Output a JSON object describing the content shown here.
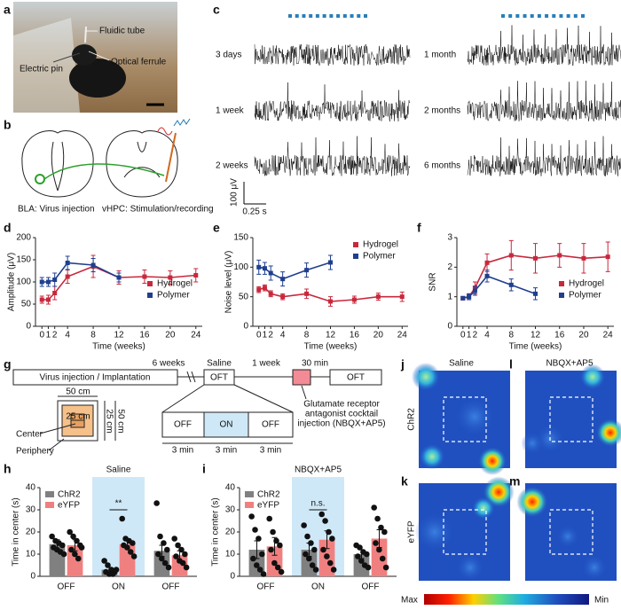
{
  "panel_labels": [
    "a",
    "b",
    "c",
    "d",
    "e",
    "f",
    "g",
    "h",
    "i",
    "j",
    "k",
    "l",
    "m"
  ],
  "photo": {
    "labels": [
      "Fluidic tube",
      "Optical ferrule",
      "Electric pin"
    ]
  },
  "schematic": {
    "labels": [
      "BLA: Virus injection",
      "vHPC: Stimulation/recording"
    ]
  },
  "traces": {
    "labels": [
      "3 days",
      "1 week",
      "2 weeks",
      "1 month",
      "2 months",
      "6 months"
    ],
    "scale_y": "100 μV",
    "scale_x": "0.25 s"
  },
  "protocol": {
    "start": "Virus injection / Implantation",
    "intervals": [
      "6 weeks",
      "Saline",
      "1 week",
      "30 min"
    ],
    "tests": [
      "OFT",
      "OFT"
    ],
    "epochs": [
      "OFF",
      "ON",
      "OFF"
    ],
    "durations": [
      "3 min",
      "3 min",
      "3 min"
    ],
    "injection": [
      "Glutamate receptor",
      "antagonist cocktail",
      "injection (NBQX+AP5)"
    ],
    "arena": {
      "outer": "50 cm",
      "inner": "25 cm",
      "outer_side": "50 cm",
      "inner_side": "25 cm",
      "center": "Center",
      "periphery": "Periphery"
    }
  },
  "heatmaps": {
    "titles": [
      "Saline",
      "NBQX+AP5"
    ],
    "rows": [
      "ChR2",
      "eYFP"
    ],
    "colorbar": [
      "Max",
      "Min"
    ]
  },
  "chart_data": [
    {
      "type": "line",
      "ylabel": "Amplitude (μV)",
      "xlabel": "Time (weeks)",
      "xlim": [
        -1,
        25
      ],
      "xticks": [
        0,
        1,
        2,
        4,
        8,
        12,
        16,
        20,
        24
      ],
      "ylim": [
        0,
        200
      ],
      "yticks": [
        0,
        50,
        100,
        150,
        200
      ],
      "legend": "center right",
      "series": [
        {
          "name": "Hydrogel",
          "color": "#c8283c",
          "x": [
            0,
            1,
            2,
            4,
            8,
            12,
            16,
            20,
            24
          ],
          "values": [
            60,
            60,
            75,
            112,
            135,
            110,
            112,
            110,
            115
          ],
          "errors": [
            8,
            10,
            15,
            15,
            25,
            15,
            15,
            15,
            15
          ]
        },
        {
          "name": "Polymer",
          "color": "#1f3f8f",
          "x": [
            0,
            1,
            2,
            4,
            8,
            12
          ],
          "values": [
            100,
            100,
            105,
            143,
            138,
            110
          ],
          "errors": [
            10,
            10,
            15,
            15,
            15,
            10
          ]
        }
      ]
    },
    {
      "type": "line",
      "ylabel": "Noise level (μV)",
      "xlabel": "Time (weeks)",
      "xlim": [
        -1,
        25
      ],
      "xticks": [
        0,
        1,
        2,
        4,
        8,
        12,
        16,
        20,
        24
      ],
      "ylim": [
        0,
        150
      ],
      "yticks": [
        0,
        50,
        100,
        150
      ],
      "legend": "upper right",
      "series": [
        {
          "name": "Hydrogel",
          "color": "#c8283c",
          "x": [
            0,
            1,
            2,
            4,
            8,
            12,
            16,
            20,
            24
          ],
          "values": [
            62,
            65,
            55,
            50,
            55,
            42,
            45,
            50,
            50
          ],
          "errors": [
            5,
            5,
            5,
            5,
            8,
            8,
            6,
            6,
            8
          ]
        },
        {
          "name": "Polymer",
          "color": "#1f3f8f",
          "x": [
            0,
            1,
            2,
            4,
            8,
            12
          ],
          "values": [
            100,
            98,
            90,
            80,
            95,
            108
          ],
          "errors": [
            12,
            10,
            12,
            12,
            12,
            12
          ]
        }
      ]
    },
    {
      "type": "line",
      "ylabel": "SNR",
      "xlabel": "Time (weeks)",
      "xlim": [
        -1,
        25
      ],
      "xticks": [
        0,
        1,
        2,
        4,
        8,
        12,
        16,
        20,
        24
      ],
      "ylim": [
        0,
        3
      ],
      "yticks": [
        0,
        1,
        2,
        3
      ],
      "legend": "center right",
      "series": [
        {
          "name": "Hydrogel",
          "color": "#c8283c",
          "x": [
            0,
            1,
            2,
            4,
            8,
            12,
            16,
            20,
            24
          ],
          "values": [
            0.95,
            1.0,
            1.3,
            2.15,
            2.4,
            2.3,
            2.4,
            2.3,
            2.35
          ],
          "errors": [
            0.05,
            0.1,
            0.2,
            0.3,
            0.5,
            0.5,
            0.4,
            0.5,
            0.5
          ]
        },
        {
          "name": "Polymer",
          "color": "#1f3f8f",
          "x": [
            0,
            1,
            2,
            4,
            8,
            12
          ],
          "values": [
            0.95,
            1.0,
            1.2,
            1.7,
            1.4,
            1.1
          ],
          "errors": [
            0.05,
            0.1,
            0.15,
            0.2,
            0.2,
            0.2
          ]
        }
      ]
    },
    {
      "type": "bar",
      "title": "Saline",
      "title_color": "#111111",
      "ylabel": "Time in center (s)",
      "categories": [
        "OFF",
        "ON",
        "OFF"
      ],
      "highlight": 1,
      "annotation": "**",
      "ylim": [
        0,
        40
      ],
      "yticks": [
        0,
        10,
        20,
        30,
        40
      ],
      "legend": "upper left",
      "series": [
        {
          "name": "ChR2",
          "color": "#808080",
          "values": [
            14.5,
            3,
            11.5
          ],
          "errors": [
            2,
            1,
            2.5
          ],
          "points": [
            [
              18,
              16,
              15,
              14,
              13,
              12,
              11,
              10
            ],
            [
              7,
              5,
              3,
              2,
              2,
              1,
              1,
              3
            ],
            [
              33,
              18,
              15,
              12,
              10,
              8,
              6,
              4
            ]
          ]
        },
        {
          "name": "eYFP",
          "color": "#f08080",
          "values": [
            14,
            14.5,
            9.5
          ],
          "errors": [
            2.5,
            2,
            2
          ],
          "points": [
            [
              20,
              18,
              16,
              14,
              12,
              10,
              8,
              13
            ],
            [
              26,
              17,
              16,
              15,
              14,
              13,
              11,
              9
            ],
            [
              17,
              14,
              12,
              10,
              9,
              7,
              6,
              4
            ]
          ]
        }
      ]
    },
    {
      "type": "bar",
      "title": "NBQX+AP5",
      "title_color": "#d62728",
      "ylabel": "Time in center (s)",
      "categories": [
        "OFF",
        "ON",
        "OFF"
      ],
      "highlight": 1,
      "annotation": "n.s.",
      "ylim": [
        0,
        40
      ],
      "yticks": [
        0,
        10,
        20,
        30,
        40
      ],
      "legend": "upper left",
      "series": [
        {
          "name": "ChR2",
          "color": "#808080",
          "values": [
            12,
            12,
            10
          ],
          "errors": [
            4,
            3,
            2
          ],
          "points": [
            [
              27,
              21,
              17,
              10,
              8,
              5,
              3,
              1
            ],
            [
              23,
              18,
              15,
              12,
              10,
              8,
              5,
              3
            ],
            [
              14,
              13,
              11,
              10,
              9,
              7,
              5,
              4
            ]
          ]
        },
        {
          "name": "eYFP",
          "color": "#f08080",
          "values": [
            13.5,
            16.5,
            17
          ],
          "errors": [
            4,
            4,
            4
          ],
          "points": [
            [
              26,
              20,
              16,
              14,
              12,
              6,
              4,
              2
            ],
            [
              28,
              25,
              20,
              17,
              12,
              9,
              6,
              3
            ],
            [
              31,
              26,
              22,
              20,
              15,
              12,
              8,
              4
            ]
          ]
        }
      ]
    }
  ]
}
